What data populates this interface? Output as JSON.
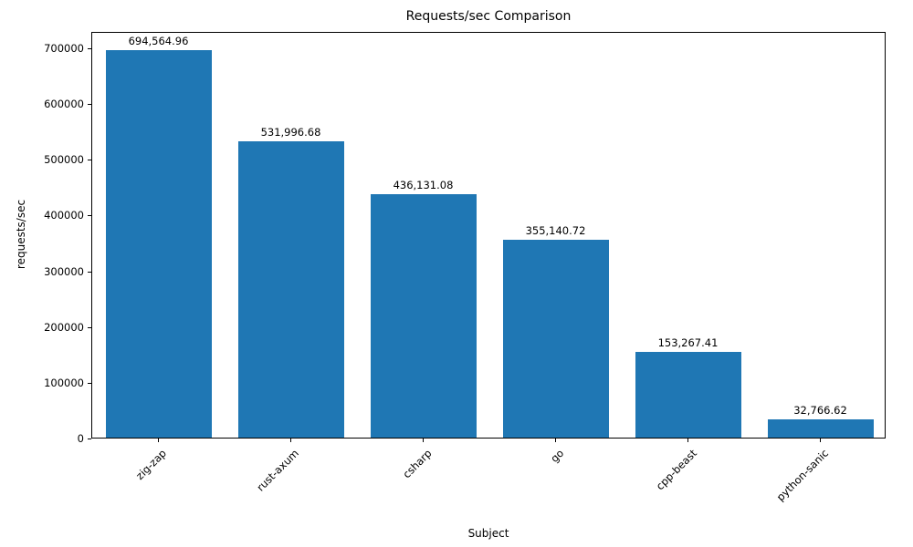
{
  "chart_data": {
    "type": "bar",
    "title": "Requests/sec Comparison",
    "xlabel": "Subject",
    "ylabel": "requests/sec",
    "categories": [
      "zig-zap",
      "rust-axum",
      "csharp",
      "go",
      "cpp-beast",
      "python-sanic"
    ],
    "values": [
      694564.96,
      531996.68,
      436131.08,
      355140.72,
      153267.41,
      32766.62
    ],
    "value_labels": [
      "694,564.96",
      "531,996.68",
      "436,131.08",
      "355,140.72",
      "153,267.41",
      "32,766.62"
    ],
    "yticks": [
      0,
      100000,
      200000,
      300000,
      400000,
      500000,
      600000,
      700000
    ],
    "ytick_labels": [
      "0",
      "100000",
      "200000",
      "300000",
      "400000",
      "500000",
      "600000",
      "700000"
    ],
    "ylim": [
      0,
      729293
    ],
    "bar_color": "#1f77b4",
    "bar_width_fraction": 0.8,
    "grid": false,
    "legend_position": "none"
  }
}
